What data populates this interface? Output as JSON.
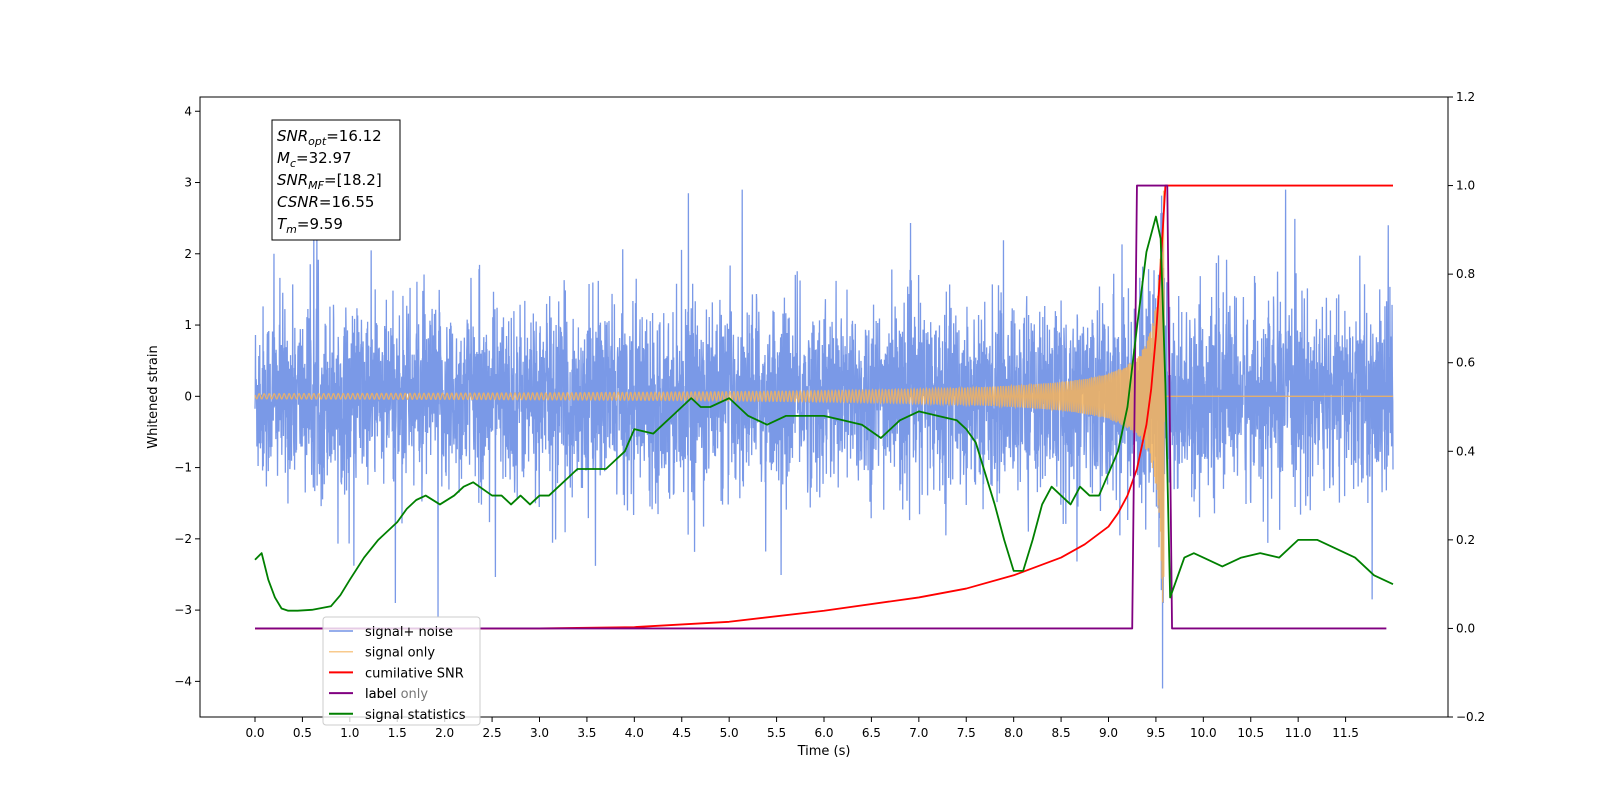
{
  "chart_data": {
    "type": "line",
    "xlabel": "Time (s)",
    "ylabel": "Whitened strain",
    "xlim": [
      -0.58,
      12.58
    ],
    "ylim": [
      -4.5,
      4.2
    ],
    "y2lim": [
      -0.2,
      1.2
    ],
    "xticks": [
      0.0,
      0.5,
      1.0,
      1.5,
      2.0,
      2.5,
      3.0,
      3.5,
      4.0,
      4.5,
      5.0,
      5.5,
      6.0,
      6.5,
      7.0,
      7.5,
      8.0,
      8.5,
      9.0,
      9.5,
      10.0,
      10.5,
      11.0,
      11.5
    ],
    "xtick_labels": [
      "0.0",
      "0.5",
      "1.0",
      "1.5",
      "2.0",
      "2.5",
      "3.0",
      "3.5",
      "4.0",
      "4.5",
      "5.0",
      "5.5",
      "6.0",
      "6.5",
      "7.0",
      "7.5",
      "8.0",
      "8.5",
      "9.0",
      "9.5",
      "10.0",
      "10.5",
      "11.0",
      "11.5"
    ],
    "yticks": [
      -4,
      -3,
      -2,
      -1,
      0,
      1,
      2,
      3,
      4
    ],
    "ytick_labels": [
      "−4",
      "−3",
      "−2",
      "−1",
      "0",
      "1",
      "2",
      "3",
      "4"
    ],
    "y2ticks": [
      -0.2,
      0.0,
      0.2,
      0.4,
      0.6,
      0.8,
      1.0,
      1.2
    ],
    "y2tick_labels": [
      "−0.2",
      "0.0",
      "0.2",
      "0.4",
      "0.6",
      "0.8",
      "1.0",
      "1.2"
    ],
    "legend_position": "lower-left",
    "grid": false,
    "annotation": [
      {
        "label": "SNR",
        "sub": "opt",
        "value": "=16.12"
      },
      {
        "label": "M",
        "sub": "c",
        "value": "=32.97"
      },
      {
        "label": "SNR",
        "sub": "MF",
        "value": "=[18.2]"
      },
      {
        "label": "CSNR",
        "sub": "",
        "value": "=16.55"
      },
      {
        "label": "T",
        "sub": "m",
        "value": "=9.59"
      }
    ],
    "series": [
      {
        "name": "signal+ noise",
        "axis": "left",
        "color": "#7393e6",
        "kind": "noise",
        "x_range": [
          0.0,
          12.0
        ],
        "typical_amplitude": 1.6,
        "peaks": [
          [
            1.93,
            -3.1
          ],
          [
            4.57,
            2.85
          ],
          [
            9.57,
            3.8
          ],
          [
            9.57,
            -4.1
          ],
          [
            11.78,
            -2.85
          ],
          [
            0.2,
            2.0
          ],
          [
            11.95,
            2.4
          ]
        ]
      },
      {
        "name": "signal only",
        "axis": "left",
        "color": "#f5b35c",
        "kind": "chirp",
        "x_range": [
          0.0,
          12.0
        ],
        "merger_time": 9.59,
        "peak_amplitude": 2.9
      },
      {
        "name": "cumilative SNR",
        "axis": "right",
        "color": "#ff0000",
        "x": [
          0.0,
          3.0,
          4.0,
          5.0,
          6.0,
          7.0,
          7.5,
          8.0,
          8.5,
          8.75,
          9.0,
          9.1,
          9.2,
          9.3,
          9.4,
          9.45,
          9.5,
          9.55,
          9.6,
          12.0
        ],
        "y": [
          0.0,
          0.0,
          0.003,
          0.015,
          0.04,
          0.07,
          0.09,
          0.12,
          0.16,
          0.19,
          0.23,
          0.26,
          0.3,
          0.36,
          0.46,
          0.54,
          0.66,
          0.82,
          1.0,
          1.0
        ]
      },
      {
        "name": "label",
        "axis": "right",
        "color": "#800080",
        "x": [
          0.0,
          9.25,
          9.3,
          9.62,
          9.67,
          11.93
        ],
        "y": [
          0.0,
          0.0,
          1.0,
          1.0,
          0.0,
          0.0
        ]
      },
      {
        "name": "label only",
        "axis": "right",
        "color": "#b3b3b3",
        "hidden_behind_legend": true,
        "x": [],
        "y": []
      },
      {
        "name": "signal statistics",
        "axis": "right",
        "color": "#008000",
        "x": [
          0.0,
          0.07,
          0.14,
          0.21,
          0.28,
          0.35,
          0.45,
          0.6,
          0.8,
          0.9,
          1.0,
          1.15,
          1.3,
          1.4,
          1.5,
          1.6,
          1.7,
          1.8,
          1.95,
          2.1,
          2.2,
          2.3,
          2.5,
          2.6,
          2.7,
          2.8,
          2.9,
          3.0,
          3.1,
          3.2,
          3.3,
          3.4,
          3.5,
          3.6,
          3.7,
          3.8,
          3.9,
          4.0,
          4.2,
          4.3,
          4.4,
          4.5,
          4.6,
          4.7,
          4.8,
          5.0,
          5.2,
          5.4,
          5.6,
          5.8,
          6.0,
          6.2,
          6.4,
          6.6,
          6.8,
          7.0,
          7.2,
          7.4,
          7.5,
          7.6,
          7.7,
          7.8,
          7.9,
          8.0,
          8.1,
          8.2,
          8.3,
          8.4,
          8.5,
          8.6,
          8.7,
          8.8,
          8.9,
          9.0,
          9.1,
          9.2,
          9.3,
          9.4,
          9.5,
          9.55,
          9.6,
          9.65,
          9.7,
          9.8,
          9.9,
          10.0,
          10.2,
          10.4,
          10.6,
          10.8,
          11.0,
          11.2,
          11.4,
          11.6,
          11.8,
          12.0
        ],
        "y": [
          0.155,
          0.17,
          0.11,
          0.07,
          0.045,
          0.04,
          0.04,
          0.042,
          0.05,
          0.075,
          0.11,
          0.16,
          0.2,
          0.22,
          0.24,
          0.27,
          0.29,
          0.3,
          0.28,
          0.3,
          0.32,
          0.33,
          0.3,
          0.3,
          0.28,
          0.3,
          0.28,
          0.3,
          0.3,
          0.32,
          0.34,
          0.36,
          0.36,
          0.36,
          0.36,
          0.38,
          0.4,
          0.45,
          0.44,
          0.46,
          0.48,
          0.5,
          0.52,
          0.5,
          0.5,
          0.52,
          0.48,
          0.46,
          0.48,
          0.48,
          0.48,
          0.47,
          0.46,
          0.43,
          0.47,
          0.49,
          0.48,
          0.47,
          0.45,
          0.42,
          0.35,
          0.28,
          0.2,
          0.13,
          0.13,
          0.2,
          0.28,
          0.32,
          0.3,
          0.28,
          0.32,
          0.3,
          0.3,
          0.35,
          0.4,
          0.5,
          0.68,
          0.85,
          0.93,
          0.88,
          0.55,
          0.07,
          0.1,
          0.16,
          0.17,
          0.16,
          0.14,
          0.16,
          0.17,
          0.16,
          0.2,
          0.2,
          0.18,
          0.16,
          0.12,
          0.1
        ]
      }
    ]
  }
}
